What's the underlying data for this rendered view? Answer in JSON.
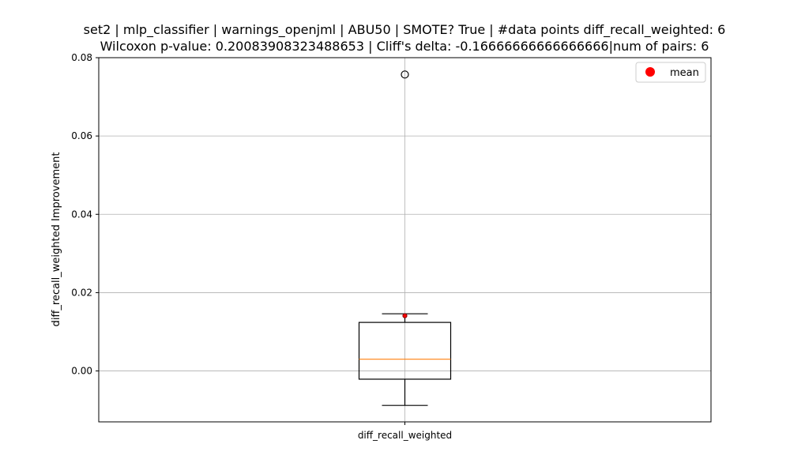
{
  "chart_data": {
    "type": "boxplot",
    "title_line1": "set2 | mlp_classifier | warnings_openjml | ABU50 | SMOTE? True | #data points diff_recall_weighted: 6",
    "title_line2": "Wilcoxon p-value: 0.20083908323488653 | Cliff's delta: -0.16666666666666666|num of pairs: 6",
    "ylabel": "diff_recall_weighted Improvement",
    "categories": [
      "diff_recall_weighted"
    ],
    "ylim": [
      -0.013,
      0.08
    ],
    "yticks": [
      0.0,
      0.02,
      0.04,
      0.06,
      0.08
    ],
    "ytick_labels": [
      "0.00",
      "0.02",
      "0.04",
      "0.06",
      "0.08"
    ],
    "grid": true,
    "legend": {
      "placement": "top-right",
      "entries": [
        "mean"
      ]
    },
    "box": {
      "whisker_low": -0.0088,
      "q1": -0.0021,
      "median": 0.003,
      "q3": 0.0124,
      "whisker_high": 0.0146,
      "mean": 0.0141,
      "outliers": [
        0.0757
      ]
    },
    "colors": {
      "box": "#000000",
      "median": "#ff7f0e",
      "mean": "#ff0000",
      "mean_edge": "#8b0000",
      "grid": "#b0b0b0"
    }
  }
}
